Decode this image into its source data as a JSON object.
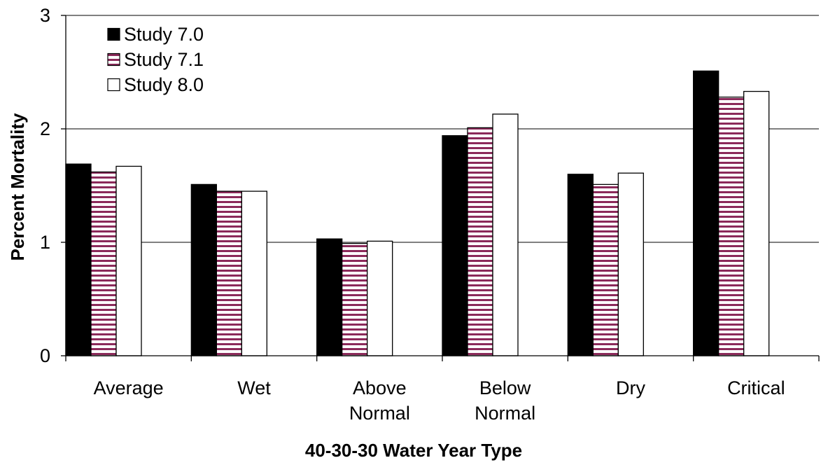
{
  "chart_data": {
    "type": "bar",
    "title": "",
    "xlabel": "40-30-30 Water Year Type",
    "ylabel": "Percent Mortality",
    "ylim": [
      0,
      3
    ],
    "yticks": [
      {
        "value": 0,
        "label": "0"
      },
      {
        "value": 1,
        "label": "1"
      },
      {
        "value": 2,
        "label": "2"
      },
      {
        "value": 3,
        "label": "3"
      }
    ],
    "grid": "horizontal major gridlines",
    "legend_position": "top-left",
    "categories": [
      [
        "Average"
      ],
      [
        "Wet"
      ],
      [
        "Above",
        "Normal"
      ],
      [
        "Below",
        "Normal"
      ],
      [
        "Dry"
      ],
      [
        "Critical"
      ]
    ],
    "series": [
      {
        "name": "Study 7.0",
        "fill": "solid",
        "color": "#000000",
        "values": [
          1.69,
          1.51,
          1.03,
          1.94,
          1.6,
          2.51
        ]
      },
      {
        "name": "Study 7.1",
        "fill": "horizontal-stripes",
        "color": "#8b2a5a",
        "values": [
          1.62,
          1.45,
          0.99,
          2.01,
          1.51,
          2.28
        ]
      },
      {
        "name": "Study 8.0",
        "fill": "white",
        "color": "#ffffff",
        "values": [
          1.67,
          1.45,
          1.01,
          2.13,
          1.61,
          2.33
        ]
      }
    ]
  }
}
